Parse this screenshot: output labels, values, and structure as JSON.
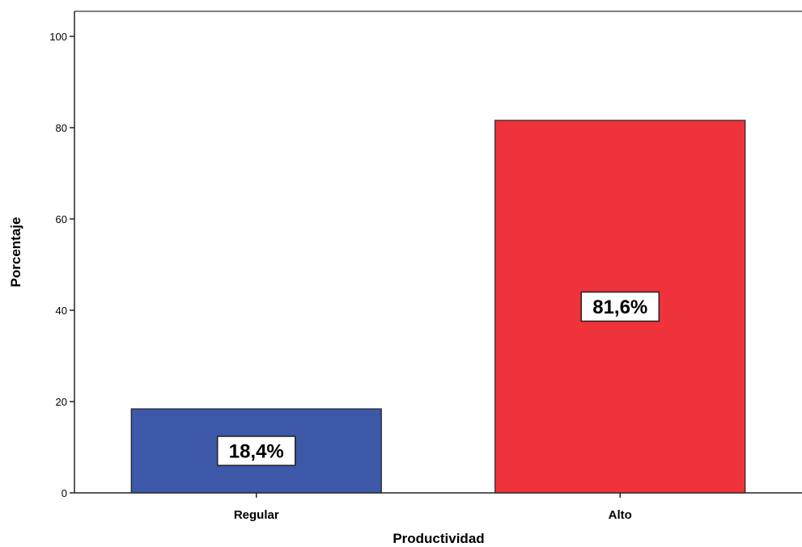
{
  "chart_data": {
    "type": "bar",
    "categories": [
      "Regular",
      "Alto"
    ],
    "values": [
      18.4,
      81.6
    ],
    "data_labels": [
      "18,4%",
      "81,6%"
    ],
    "colors": [
      "#3d58a8",
      "#ef333b"
    ],
    "xlabel": "Productividad",
    "ylabel": "Porcentaje",
    "ylim": [
      0,
      100
    ],
    "yticks": [
      0,
      20,
      40,
      60,
      80,
      100
    ],
    "ytick_labels": [
      "0",
      "20",
      "40",
      "60",
      "80",
      "100"
    ],
    "grid": false,
    "legend": "none"
  }
}
